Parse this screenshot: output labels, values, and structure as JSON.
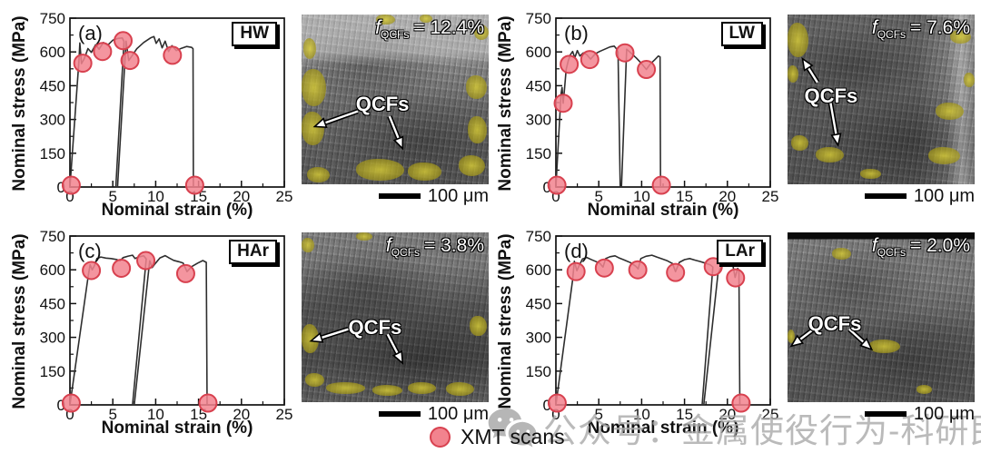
{
  "style": {
    "curve_color": "#2e2e2e",
    "scan_fill": "#F2838E",
    "scan_stroke": "#D8414F",
    "qcf_yellow": "#C8BC2E",
    "axis_color": "#111111"
  },
  "legend": {
    "marker": "xmt-scan-circle",
    "label": "XMT scans"
  },
  "watermark": {
    "icon": "wechat-icon",
    "text": "公众号：金属使役行为-科研民工"
  },
  "chart_data": [
    {
      "type": "line",
      "panel": "(a)",
      "sample": "HW",
      "xlabel": "Nominal strain (%)",
      "ylabel": "Nominal stress (MPa)",
      "xlim": [
        0,
        25
      ],
      "ylim": [
        0,
        750
      ],
      "xticks": [
        0,
        5,
        10,
        15,
        20,
        25
      ],
      "yticks": [
        0,
        150,
        300,
        450,
        600,
        750
      ],
      "series": [
        {
          "name": "nominal stress-strain curve with unload-reload for XMT scan",
          "points": [
            [
              0,
              0
            ],
            [
              1.05,
              560
            ],
            [
              1.15,
              640
            ],
            [
              1.35,
              548
            ],
            [
              1.7,
              572
            ],
            [
              2.1,
              615
            ],
            [
              2.5,
              598
            ],
            [
              3.0,
              632
            ],
            [
              3.4,
              612
            ],
            [
              3.9,
              642
            ],
            [
              4.4,
              630
            ],
            [
              5.0,
              652
            ],
            [
              5.6,
              660
            ],
            [
              6.1,
              662
            ],
            [
              6.3,
              646
            ],
            [
              5.35,
              0
            ],
            [
              5.55,
              0
            ],
            [
              6.55,
              648
            ],
            [
              6.85,
              562
            ],
            [
              7.15,
              578
            ],
            [
              7.8,
              614
            ],
            [
              8.6,
              642
            ],
            [
              9.4,
              662
            ],
            [
              9.8,
              668
            ],
            [
              10.05,
              638
            ],
            [
              10.4,
              658
            ],
            [
              10.75,
              618
            ],
            [
              11.1,
              648
            ],
            [
              11.5,
              602
            ],
            [
              11.9,
              628
            ],
            [
              12.4,
              606
            ],
            [
              13.0,
              616
            ],
            [
              13.6,
              624
            ],
            [
              14.2,
              620
            ],
            [
              14.35,
              614
            ],
            [
              14.4,
              0
            ]
          ]
        }
      ],
      "scan_points": [
        [
          0.15,
          8
        ],
        [
          1.5,
          550
        ],
        [
          3.8,
          602
        ],
        [
          6.2,
          650
        ],
        [
          7.0,
          562
        ],
        [
          11.95,
          585
        ],
        [
          14.55,
          8
        ]
      ]
    },
    {
      "type": "line",
      "panel": "(b)",
      "sample": "LW",
      "xlabel": "Nominal strain (%)",
      "ylabel": "Nominal stress (MPa)",
      "xlim": [
        0,
        25
      ],
      "ylim": [
        0,
        750
      ],
      "xticks": [
        0,
        5,
        10,
        15,
        20,
        25
      ],
      "yticks": [
        0,
        150,
        300,
        450,
        600,
        750
      ],
      "series": [
        {
          "name": "nominal stress-strain curve with unload-reload for XMT scan",
          "points": [
            [
              0,
              0
            ],
            [
              0.6,
              415
            ],
            [
              0.72,
              442
            ],
            [
              0.85,
              372
            ],
            [
              1.0,
              432
            ],
            [
              1.2,
              522
            ],
            [
              1.45,
              562
            ],
            [
              1.7,
              588
            ],
            [
              1.95,
              602
            ],
            [
              2.2,
              574
            ],
            [
              2.5,
              606
            ],
            [
              2.8,
              582
            ],
            [
              3.2,
              596
            ],
            [
              3.6,
              588
            ],
            [
              4.05,
              568
            ],
            [
              4.6,
              592
            ],
            [
              5.1,
              602
            ],
            [
              5.7,
              612
            ],
            [
              6.3,
              622
            ],
            [
              6.8,
              626
            ],
            [
              7.1,
              612
            ],
            [
              7.25,
              600
            ],
            [
              7.5,
              0
            ],
            [
              7.65,
              0
            ],
            [
              8.25,
              612
            ],
            [
              8.55,
              602
            ],
            [
              8.9,
              590
            ],
            [
              9.4,
              572
            ],
            [
              10.0,
              548
            ],
            [
              10.55,
              522
            ],
            [
              11.0,
              546
            ],
            [
              11.5,
              564
            ],
            [
              11.95,
              582
            ],
            [
              12.15,
              578
            ],
            [
              12.2,
              0
            ]
          ]
        }
      ],
      "scan_points": [
        [
          0.12,
          8
        ],
        [
          0.85,
          372
        ],
        [
          1.55,
          545
        ],
        [
          3.95,
          566
        ],
        [
          8.05,
          596
        ],
        [
          10.55,
          522
        ],
        [
          12.3,
          8
        ]
      ]
    },
    {
      "type": "line",
      "panel": "(c)",
      "sample": "HAr",
      "xlabel": "Nominal strain (%)",
      "ylabel": "Nominal stress (MPa)",
      "xlim": [
        0,
        25
      ],
      "ylim": [
        0,
        750
      ],
      "xticks": [
        0,
        5,
        10,
        15,
        20,
        25
      ],
      "yticks": [
        0,
        150,
        300,
        450,
        600,
        750
      ],
      "series": [
        {
          "name": "nominal stress-strain curve with unload-reload for XMT scan",
          "points": [
            [
              0,
              0
            ],
            [
              2.15,
              578
            ],
            [
              2.35,
              622
            ],
            [
              2.6,
              600
            ],
            [
              2.85,
              618
            ],
            [
              3.15,
              650
            ],
            [
              3.6,
              657
            ],
            [
              4.2,
              652
            ],
            [
              4.8,
              650
            ],
            [
              5.4,
              646
            ],
            [
              5.85,
              640
            ],
            [
              6.2,
              654
            ],
            [
              6.8,
              661
            ],
            [
              7.3,
              665
            ],
            [
              7.6,
              650
            ],
            [
              8.1,
              658
            ],
            [
              8.6,
              662
            ],
            [
              8.9,
              648
            ],
            [
              7.3,
              0
            ],
            [
              7.5,
              0
            ],
            [
              9.3,
              640
            ],
            [
              9.6,
              610
            ],
            [
              9.95,
              628
            ],
            [
              10.5,
              653
            ],
            [
              11.1,
              663
            ],
            [
              11.6,
              652
            ],
            [
              12.1,
              642
            ],
            [
              12.7,
              636
            ],
            [
              13.2,
              630
            ],
            [
              13.65,
              592
            ],
            [
              14.2,
              614
            ],
            [
              14.9,
              630
            ],
            [
              15.5,
              641
            ],
            [
              15.9,
              633
            ],
            [
              16.0,
              0
            ]
          ]
        }
      ],
      "scan_points": [
        [
          0.15,
          8
        ],
        [
          2.5,
          597
        ],
        [
          6.0,
          607
        ],
        [
          8.85,
          641
        ],
        [
          13.5,
          583
        ],
        [
          16.1,
          8
        ]
      ]
    },
    {
      "type": "line",
      "panel": "(d)",
      "sample": "LAr",
      "xlabel": "Nominal strain (%)",
      "ylabel": "Nominal stress (MPa)",
      "xlim": [
        0,
        25
      ],
      "ylim": [
        0,
        750
      ],
      "xticks": [
        0,
        5,
        10,
        15,
        20,
        25
      ],
      "yticks": [
        0,
        150,
        300,
        450,
        600,
        750
      ],
      "series": [
        {
          "name": "nominal stress-strain curve with unload-reload for XMT scan",
          "points": [
            [
              0,
              0
            ],
            [
              1.95,
              555
            ],
            [
              2.15,
              638
            ],
            [
              2.45,
              596
            ],
            [
              2.75,
              622
            ],
            [
              3.1,
              648
            ],
            [
              3.6,
              655
            ],
            [
              4.1,
              646
            ],
            [
              4.6,
              638
            ],
            [
              5.1,
              630
            ],
            [
              5.5,
              612
            ],
            [
              5.8,
              650
            ],
            [
              6.3,
              658
            ],
            [
              6.9,
              662
            ],
            [
              7.4,
              652
            ],
            [
              8.0,
              643
            ],
            [
              8.7,
              632
            ],
            [
              9.3,
              616
            ],
            [
              9.6,
              604
            ],
            [
              9.9,
              650
            ],
            [
              10.5,
              660
            ],
            [
              11.2,
              665
            ],
            [
              11.8,
              656
            ],
            [
              12.4,
              648
            ],
            [
              13.0,
              640
            ],
            [
              13.6,
              628
            ],
            [
              13.95,
              592
            ],
            [
              14.4,
              633
            ],
            [
              15.0,
              645
            ],
            [
              15.6,
              650
            ],
            [
              16.2,
              643
            ],
            [
              16.8,
              637
            ],
            [
              17.4,
              630
            ],
            [
              18.0,
              622
            ],
            [
              18.3,
              612
            ],
            [
              17.05,
              0
            ],
            [
              17.25,
              0
            ],
            [
              18.9,
              582
            ],
            [
              19.3,
              616
            ],
            [
              19.8,
              633
            ],
            [
              20.3,
              641
            ],
            [
              20.6,
              628
            ],
            [
              20.9,
              566
            ],
            [
              21.2,
              606
            ],
            [
              21.35,
              598
            ],
            [
              21.45,
              0
            ]
          ]
        }
      ],
      "scan_points": [
        [
          0.15,
          8
        ],
        [
          2.35,
          592
        ],
        [
          5.65,
          608
        ],
        [
          9.55,
          600
        ],
        [
          13.95,
          588
        ],
        [
          18.35,
          614
        ],
        [
          20.95,
          564
        ],
        [
          21.6,
          8
        ]
      ]
    }
  ],
  "sem_panels": [
    {
      "f_symbol": "f",
      "f_sub": "QCFs",
      "f_eq": "= 12.4%",
      "qcfs_label": "QCFs",
      "scale": "100 μm"
    },
    {
      "f_symbol": "f",
      "f_sub": "QCFs",
      "f_eq": "= 7.6%",
      "qcfs_label": "QCFs",
      "scale": "100 μm"
    },
    {
      "f_symbol": "f",
      "f_sub": "QCFs",
      "f_eq": "= 3.8%",
      "qcfs_label": "QCFs",
      "scale": "100 μm"
    },
    {
      "f_symbol": "f",
      "f_sub": "QCFs",
      "f_eq": "= 2.0%",
      "qcfs_label": "QCFs",
      "scale": "100 μm"
    }
  ]
}
